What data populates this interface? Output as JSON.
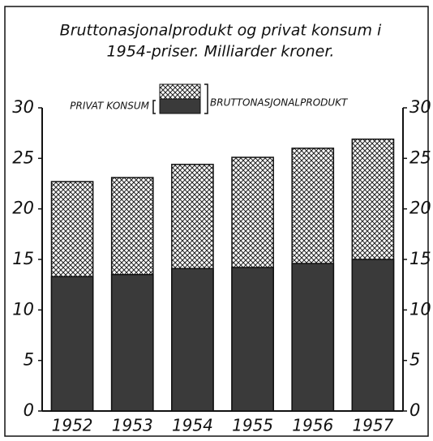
{
  "chart_data": {
    "type": "bar",
    "title": [
      "Bruttonasjonalprodukt og privat konsum i",
      "1954-priser. Milliarder kroner."
    ],
    "categories": [
      "1952",
      "1953",
      "1954",
      "1955",
      "1956",
      "1957"
    ],
    "series": [
      {
        "name": "PRIVAT KONSUM",
        "color": "#3a3a3a",
        "values": [
          13.3,
          13.5,
          14.1,
          14.2,
          14.6,
          15.0
        ]
      },
      {
        "name": "BRUTTONASJONALPRODUKT",
        "color": "#222222",
        "values": [
          22.7,
          23.1,
          24.4,
          25.1,
          26.0,
          26.9
        ]
      }
    ],
    "ylim": [
      0,
      30
    ],
    "yticks": [
      0,
      5,
      10,
      15,
      20,
      25,
      30
    ],
    "y2lim": [
      0,
      30
    ],
    "y2ticks": [
      0,
      5,
      10,
      15,
      20,
      25,
      30
    ]
  }
}
